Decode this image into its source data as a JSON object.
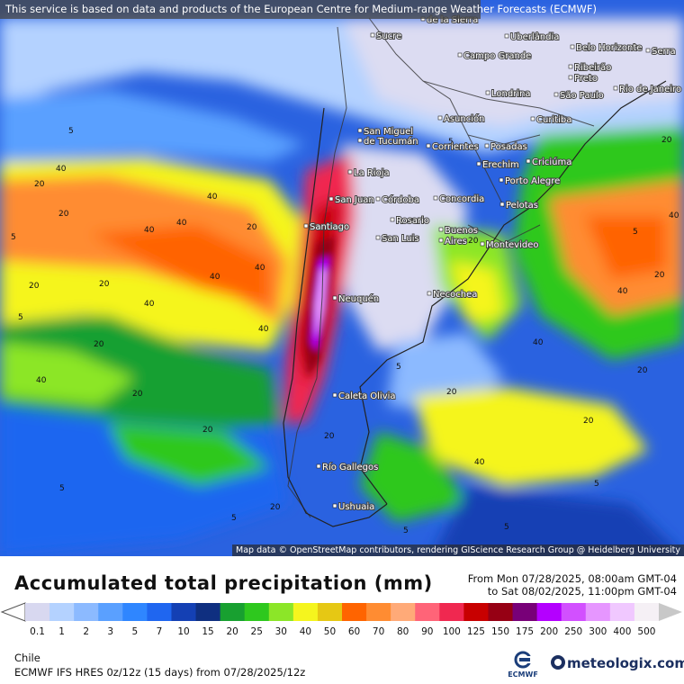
{
  "notice": "This service is based on data and products of the European Centre for Medium-range Weather Forecasts (ECMWF)",
  "attribution": "Map data © OpenStreetMap contributors, rendering GIScience Research Group @ Heidelberg University",
  "map": {
    "cities": [
      {
        "name": "Sucre"
      },
      {
        "name": "Uberlândia"
      },
      {
        "name": "Belo Horizonte"
      },
      {
        "name": "Serra"
      },
      {
        "name": "Campo Grande"
      },
      {
        "name": "Ribeirão"
      },
      {
        "name": "Preto"
      },
      {
        "name": "Londrina"
      },
      {
        "name": "São Paulo"
      },
      {
        "name": "Rio de Janeiro"
      },
      {
        "name": "Asunción"
      },
      {
        "name": "Curitiba"
      },
      {
        "name": "San Miguel"
      },
      {
        "name": "de Tucumán"
      },
      {
        "name": "Corrientes"
      },
      {
        "name": "Posadas"
      },
      {
        "name": "Erechim"
      },
      {
        "name": "Criciúma"
      },
      {
        "name": "La Rioja"
      },
      {
        "name": "Porto Alegre"
      },
      {
        "name": "San Juan"
      },
      {
        "name": "Córdoba"
      },
      {
        "name": "Concordia"
      },
      {
        "name": "Pelotas"
      },
      {
        "name": "Santiago"
      },
      {
        "name": "Rosario"
      },
      {
        "name": "Buenos"
      },
      {
        "name": "Aires"
      },
      {
        "name": "San Luis"
      },
      {
        "name": "Montevideo"
      },
      {
        "name": "Necochea"
      },
      {
        "name": "Neuquén"
      },
      {
        "name": "Caleta Olivia"
      },
      {
        "name": "Río Gallegos"
      },
      {
        "name": "Ushuaia"
      },
      {
        "name": "de la Sierra"
      }
    ],
    "contour_labels": [
      "5",
      "20",
      "40",
      "5",
      "20",
      "40",
      "20",
      "40",
      "5",
      "20",
      "40",
      "20",
      "5",
      "40",
      "20",
      "40",
      "5",
      "20",
      "40",
      "20",
      "5",
      "20",
      "40",
      "5",
      "20",
      "40",
      "20",
      "5",
      "40",
      "20",
      "5",
      "20",
      "40",
      "20",
      "5",
      "5",
      "20",
      "40",
      "20",
      "40"
    ]
  },
  "legend": {
    "title": "Accumulated total precipitation (mm)",
    "period_from": "From Mon 07/28/2025, 08:00am GMT-04",
    "period_to": "to Sat 08/02/2025, 11:00pm GMT-04",
    "levels": [
      {
        "label": "0.1",
        "color": "#d8d8f0"
      },
      {
        "label": "1",
        "color": "#b4d2ff"
      },
      {
        "label": "2",
        "color": "#8cbaff"
      },
      {
        "label": "3",
        "color": "#5aa0ff"
      },
      {
        "label": "5",
        "color": "#2f86ff"
      },
      {
        "label": "7",
        "color": "#1f66f0"
      },
      {
        "label": "10",
        "color": "#1440b4"
      },
      {
        "label": "15",
        "color": "#0f2f80"
      },
      {
        "label": "20",
        "color": "#18a030"
      },
      {
        "label": "25",
        "color": "#2ec81e"
      },
      {
        "label": "30",
        "color": "#8ce628"
      },
      {
        "label": "40",
        "color": "#f5f51e"
      },
      {
        "label": "50",
        "color": "#e6c814"
      },
      {
        "label": "60",
        "color": "#ff6400"
      },
      {
        "label": "70",
        "color": "#ff8c32"
      },
      {
        "label": "80",
        "color": "#ffaa78"
      },
      {
        "label": "90",
        "color": "#ff6478"
      },
      {
        "label": "100",
        "color": "#f02850"
      },
      {
        "label": "125",
        "color": "#c80000"
      },
      {
        "label": "150",
        "color": "#960014"
      },
      {
        "label": "175",
        "color": "#780078"
      },
      {
        "label": "200",
        "color": "#b400ff"
      },
      {
        "label": "250",
        "color": "#d250ff"
      },
      {
        "label": "300",
        "color": "#e696ff"
      },
      {
        "label": "400",
        "color": "#f0c8ff"
      },
      {
        "label": "500",
        "color": "#f5f0f5"
      }
    ],
    "over_color": "#c8c8c8"
  },
  "footer": {
    "region": "Chile",
    "model_info": "ECMWF IFS HRES 0z/12z (15 days) from 07/28/2025/12z",
    "ecmwf_logo_text": "ECMWF",
    "brand": "meteologix.com"
  }
}
